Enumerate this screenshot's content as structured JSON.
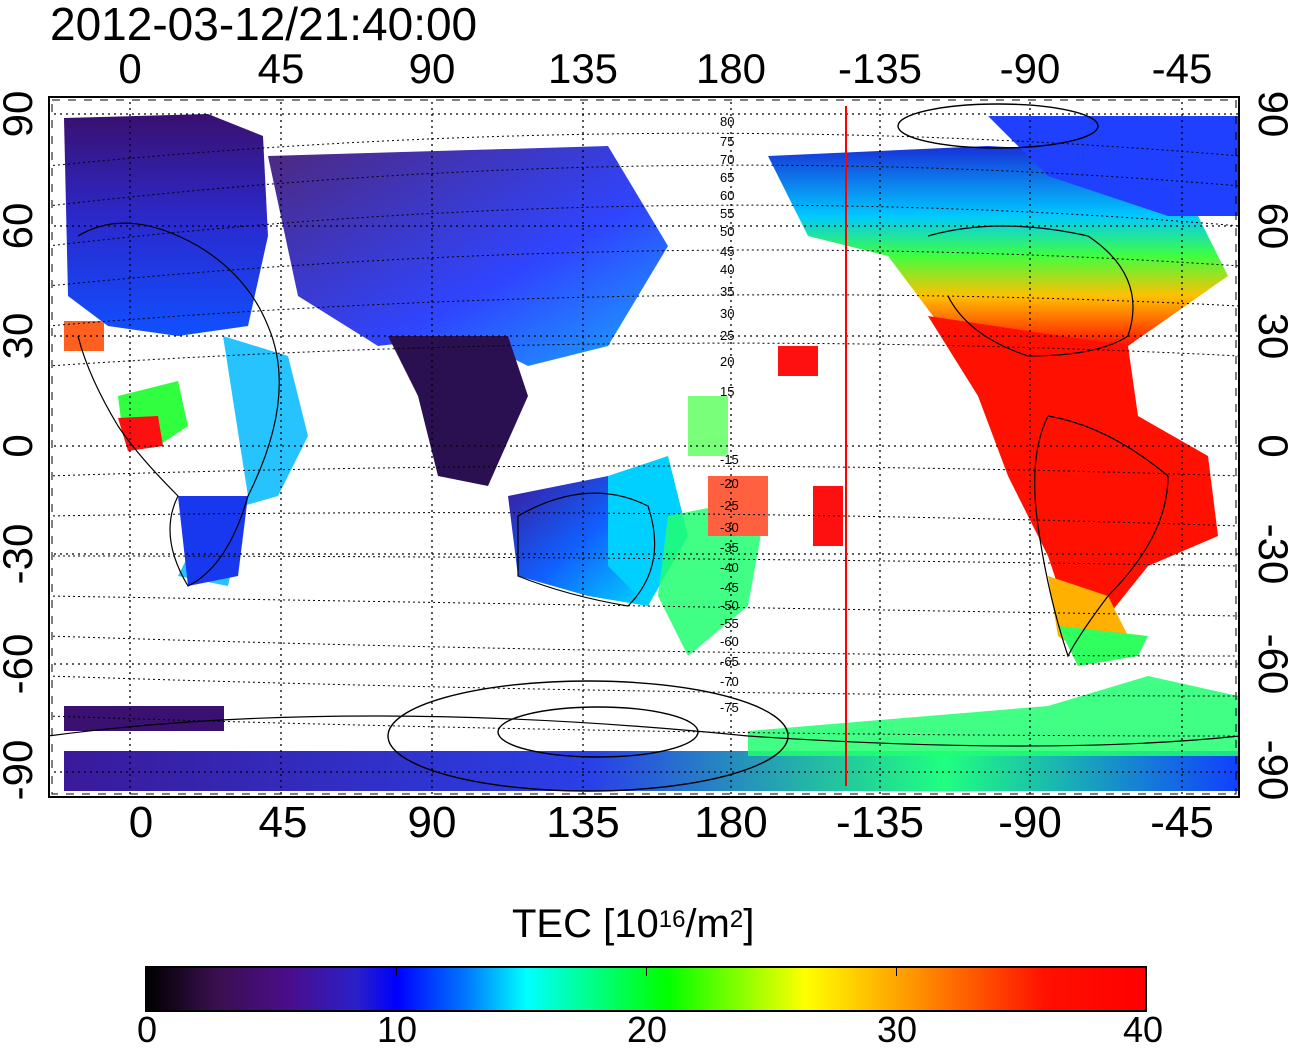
{
  "title": "2012-03-12/21:40:00",
  "lon_ticks": [
    "0",
    "45",
    "90",
    "135",
    "180",
    "-135",
    "-90",
    "-45"
  ],
  "lat_ticks": [
    "90",
    "60",
    "30",
    "0",
    "-30",
    "-60",
    "-90"
  ],
  "contour_labels": [
    "80",
    "75",
    "70",
    "65",
    "60",
    "55",
    "50",
    "45",
    "40",
    "35",
    "30",
    "25",
    "20",
    "15",
    "-15",
    "-20",
    "-25",
    "-30",
    "-35",
    "-40",
    "-45",
    "-50",
    "-55",
    "-60",
    "-65",
    "-70",
    "-75"
  ],
  "colorbar": {
    "title_main": "TEC  [10",
    "title_sup1": "16",
    "title_mid": "/m",
    "title_sup2": "2",
    "title_end": "]",
    "ticks": [
      "0",
      "10",
      "20",
      "30",
      "40"
    ],
    "range": [
      0,
      40
    ]
  },
  "colors": {
    "grid": "#000000",
    "dayline": "#ff0000",
    "low": "#000000",
    "mid": "#00ffff",
    "high": "#ff0000"
  }
}
